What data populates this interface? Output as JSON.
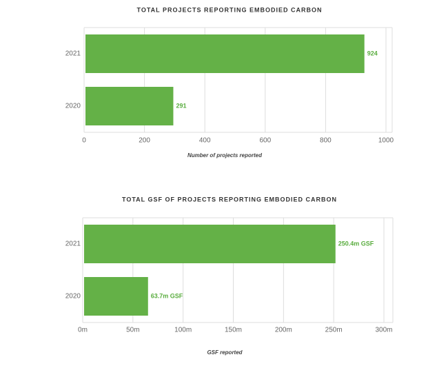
{
  "chart_data": [
    {
      "type": "bar",
      "orientation": "horizontal",
      "title": "TOTAL PROJECTS REPORTING EMBODIED CARBON",
      "categories": [
        "2021",
        "2020"
      ],
      "values": [
        924,
        291
      ],
      "color": "#64b147",
      "xlim": [
        0,
        1000
      ],
      "xticks": [
        0,
        200,
        400,
        600,
        800,
        1000
      ],
      "grid": true,
      "x_label": "Number of projects reported"
    },
    {
      "type": "bar",
      "orientation": "horizontal",
      "title": "TOTAL GSF OF PROJECTS REPORTING EMBODIED CARBON",
      "categories": [
        "2021",
        "2020"
      ],
      "values": [
        250.4,
        63.7
      ],
      "value_labels": [
        "250.4m GSF",
        "63.7m GSF"
      ],
      "color": "#64b147",
      "xlim": [
        0,
        300
      ],
      "xticks": [
        {
          "value": 0,
          "label": "0m"
        },
        {
          "value": 50,
          "label": "50m"
        },
        {
          "value": 100,
          "label": "100m"
        },
        {
          "value": 150,
          "label": "150m"
        },
        {
          "value": 200,
          "label": "200m"
        },
        {
          "value": 250,
          "label": "250m"
        },
        {
          "value": 300,
          "label": "300m"
        }
      ],
      "grid": true,
      "x_label": "GSF reported"
    }
  ]
}
